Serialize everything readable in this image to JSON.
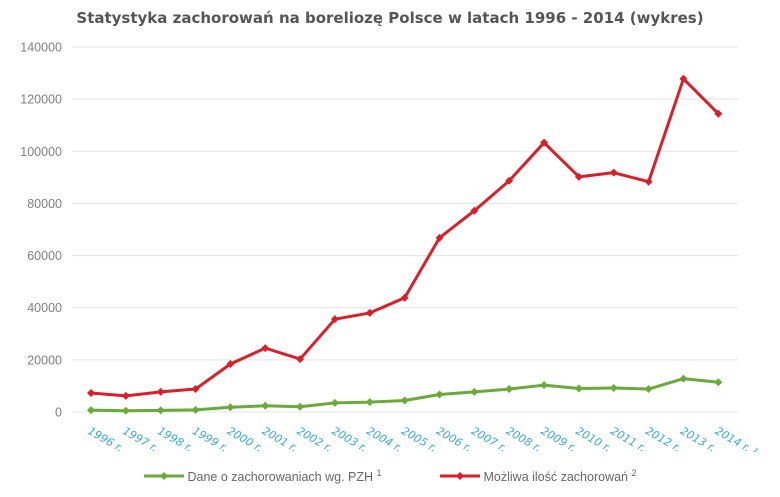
{
  "chart_data": {
    "type": "line",
    "title": "Statystyka zachorowań na boreliozę Polsce w latach 1996 - 2014 (wykres)",
    "xlabel": "",
    "ylabel": "",
    "ylim": [
      0,
      140000
    ],
    "yticks": [
      0,
      20000,
      40000,
      60000,
      80000,
      100000,
      120000,
      140000
    ],
    "grid": true,
    "legend_position": "bottom",
    "categories": [
      "1996 r.",
      "1997 r.",
      "1998 r.",
      "1999 r.",
      "2000 r.",
      "2001 r.",
      "2002 r.",
      "2003 r.",
      "2004 r.",
      "2005 r.",
      "2006 r.",
      "2007 r.",
      "2008 r.",
      "2009 r.",
      "2010 r.",
      "2011 r.",
      "2012 r.",
      "2013 r.",
      "2014 r. ³"
    ],
    "series": [
      {
        "name": "Dane o zachorowaniach wg. PZH ¹",
        "color": "#6aaa3a",
        "values": [
          700,
          500,
          600,
          800,
          1800,
          2400,
          2000,
          3500,
          3800,
          4400,
          6700,
          7700,
          8800,
          10300,
          9000,
          9200,
          8800,
          12800,
          11400
        ]
      },
      {
        "name": "Możliwa ilość zachorowań ²",
        "color": "#d9202a",
        "values": [
          7300,
          6200,
          7700,
          8800,
          18400,
          24500,
          20300,
          35600,
          38000,
          43800,
          66800,
          77200,
          88700,
          103300,
          90200,
          91800,
          88300,
          127800,
          114400
        ]
      }
    ]
  },
  "legend": {
    "series1_label": "Dane o zachorowaniach wg. PZH ",
    "series1_sup": "1",
    "series2_label": "Możliwa ilość zachorowań ",
    "series2_sup": "2"
  }
}
